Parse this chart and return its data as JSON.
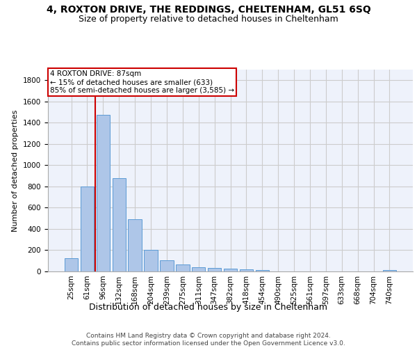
{
  "title_line1": "4, ROXTON DRIVE, THE REDDINGS, CHELTENHAM, GL51 6SQ",
  "title_line2": "Size of property relative to detached houses in Cheltenham",
  "xlabel": "Distribution of detached houses by size in Cheltenham",
  "ylabel": "Number of detached properties",
  "footer_line1": "Contains HM Land Registry data © Crown copyright and database right 2024.",
  "footer_line2": "Contains public sector information licensed under the Open Government Licence v3.0.",
  "categories": [
    "25sqm",
    "61sqm",
    "96sqm",
    "132sqm",
    "168sqm",
    "204sqm",
    "239sqm",
    "275sqm",
    "311sqm",
    "347sqm",
    "382sqm",
    "418sqm",
    "454sqm",
    "490sqm",
    "525sqm",
    "561sqm",
    "597sqm",
    "633sqm",
    "668sqm",
    "704sqm",
    "740sqm"
  ],
  "values": [
    125,
    800,
    1475,
    875,
    490,
    205,
    105,
    65,
    40,
    35,
    25,
    20,
    10,
    0,
    0,
    0,
    0,
    0,
    0,
    0,
    15
  ],
  "bar_color": "#aec6e8",
  "bar_edge_color": "#5b9bd5",
  "annotation_box_text_line1": "4 ROXTON DRIVE: 87sqm",
  "annotation_box_text_line2": "← 15% of detached houses are smaller (633)",
  "annotation_box_text_line3": "85% of semi-detached houses are larger (3,585) →",
  "annotation_box_color": "#cc0000",
  "vline_x": 1.5,
  "vline_color": "#cc0000",
  "ylim": [
    0,
    1900
  ],
  "yticks": [
    0,
    200,
    400,
    600,
    800,
    1000,
    1200,
    1400,
    1600,
    1800
  ],
  "grid_color": "#cccccc",
  "background_color": "#eef2fb",
  "title1_fontsize": 10,
  "title2_fontsize": 9,
  "xlabel_fontsize": 9,
  "ylabel_fontsize": 8,
  "tick_fontsize": 7.5,
  "footer_fontsize": 6.5,
  "annot_fontsize": 7.5
}
